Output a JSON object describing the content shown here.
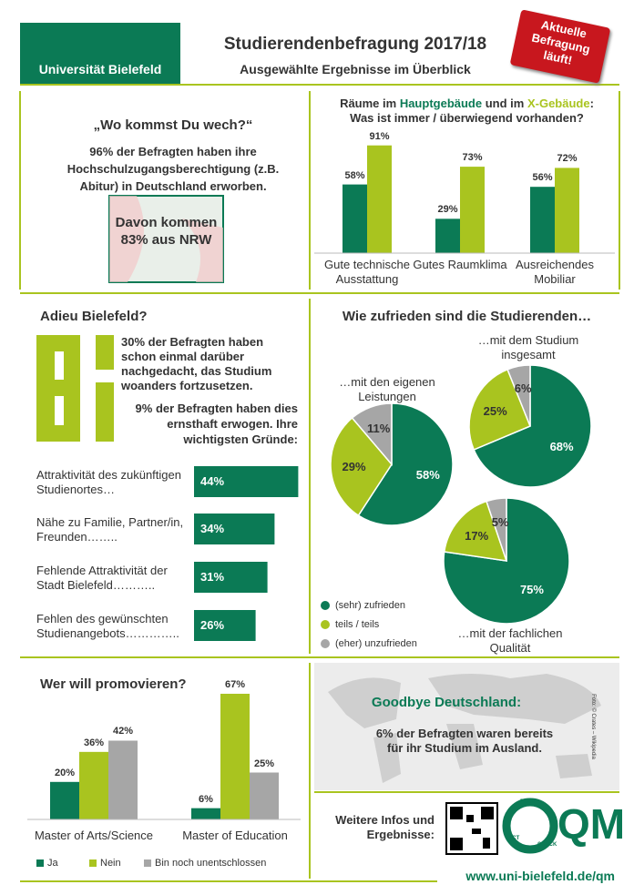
{
  "header": {
    "logo": "Universität Bielefeld",
    "title": "Studierendenbefragung 2017/18",
    "subtitle": "Ausgewählte Ergebnisse im Überblick",
    "badge": "Aktuelle Befragung läuft!"
  },
  "origin": {
    "title": "„Wo kommst Du wech?“",
    "text": "96% der Befragten haben ihre Hochschulzugangsberechtigung (z.B. Abitur)  in Deutschland erworben.",
    "box": "Davon kommen 83% aus NRW"
  },
  "adieu": {
    "title": "Adieu Bielefeld?",
    "text1": "30% der Befragten haben schon einmal darüber nachgedacht, das Studium woanders fortzusetzen.",
    "text2": "9% der Befragten haben dies ernsthaft erwogen. Ihre wichtigsten Gründe:"
  },
  "abroad": {
    "title": "Goodbye Deutschland:",
    "text": "6% der Befragten waren bereits für ihr Studium im Ausland.",
    "credit": "Foto: © Crates – Wikipedia"
  },
  "footer": {
    "info": "Weitere Infos und Ergebnisse:",
    "qm": "QM",
    "cycle": [
      "PLAN",
      "DO",
      "CHECK",
      "ACT"
    ],
    "url": "www.uni-bielefeld.de/qm"
  },
  "chart_data": [
    {
      "type": "bar",
      "title_parts": [
        "Räume im ",
        "Hauptgebäude",
        " und im ",
        "X-Gebäude",
        ":"
      ],
      "subtitle": "Was ist immer / überwiegend vorhanden?",
      "categories": [
        "Gute technische Ausstattung",
        "Gutes Raumklima",
        "Ausreichendes Mobiliar"
      ],
      "series": [
        {
          "name": "Hauptgebäude",
          "color": "#0b7a55",
          "values": [
            58,
            29,
            56
          ],
          "value_labels": [
            "58%",
            "29%",
            "56%"
          ]
        },
        {
          "name": "X-Gebäude",
          "color": "#a9c41f",
          "values": [
            91,
            73,
            72
          ],
          "value_labels": [
            "91%",
            "73%",
            "72%"
          ]
        }
      ]
    },
    {
      "type": "hbar",
      "categories": [
        "Attraktivität des zukünftigen Studienortes…",
        "Nähe zu Familie, Partner/in, Freunden……..",
        "Fehlende Attraktivität der Stadt Bielefeld………..",
        "Fehlen des gewünschten Studienangebots………….."
      ],
      "values": [
        44,
        34,
        31,
        26
      ],
      "value_labels": [
        "44%",
        "34%",
        "31%",
        "26%"
      ],
      "color": "#0b7a55"
    },
    {
      "type": "pie",
      "title": "Wie zufrieden sind die Studierenden…",
      "categories": [
        "(sehr) zufrieden",
        "teils / teils",
        "(eher) unzufrieden"
      ],
      "colors": [
        "#0b7a55",
        "#a9c41f",
        "#a6a6a6"
      ],
      "pies": [
        {
          "label": "…mit den eigenen Leistungen",
          "values": [
            58,
            29,
            11
          ],
          "value_labels": [
            "58%",
            "29%",
            "11%"
          ]
        },
        {
          "label": "…mit dem Studium insgesamt",
          "values": [
            68,
            25,
            6
          ],
          "value_labels": [
            "68%",
            "25%",
            "6%"
          ]
        },
        {
          "label": "…mit der fachlichen Qualität",
          "values": [
            75,
            17,
            5
          ],
          "value_labels": [
            "75%",
            "17%",
            "5%"
          ]
        }
      ]
    },
    {
      "type": "bar",
      "title": "Wer will promovieren?",
      "categories": [
        "Master of Arts/Science",
        "Master of Education"
      ],
      "series": [
        {
          "name": "Ja",
          "color": "#0b7a55",
          "values": [
            20,
            6
          ],
          "value_labels": [
            "20%",
            "6%"
          ]
        },
        {
          "name": "Nein",
          "color": "#a9c41f",
          "values": [
            36,
            67
          ],
          "value_labels": [
            "36%",
            "67%"
          ]
        },
        {
          "name": "Bin noch unentschlossen",
          "color": "#a6a6a6",
          "values": [
            42,
            25
          ],
          "value_labels": [
            "42%",
            "25%"
          ]
        }
      ]
    }
  ]
}
